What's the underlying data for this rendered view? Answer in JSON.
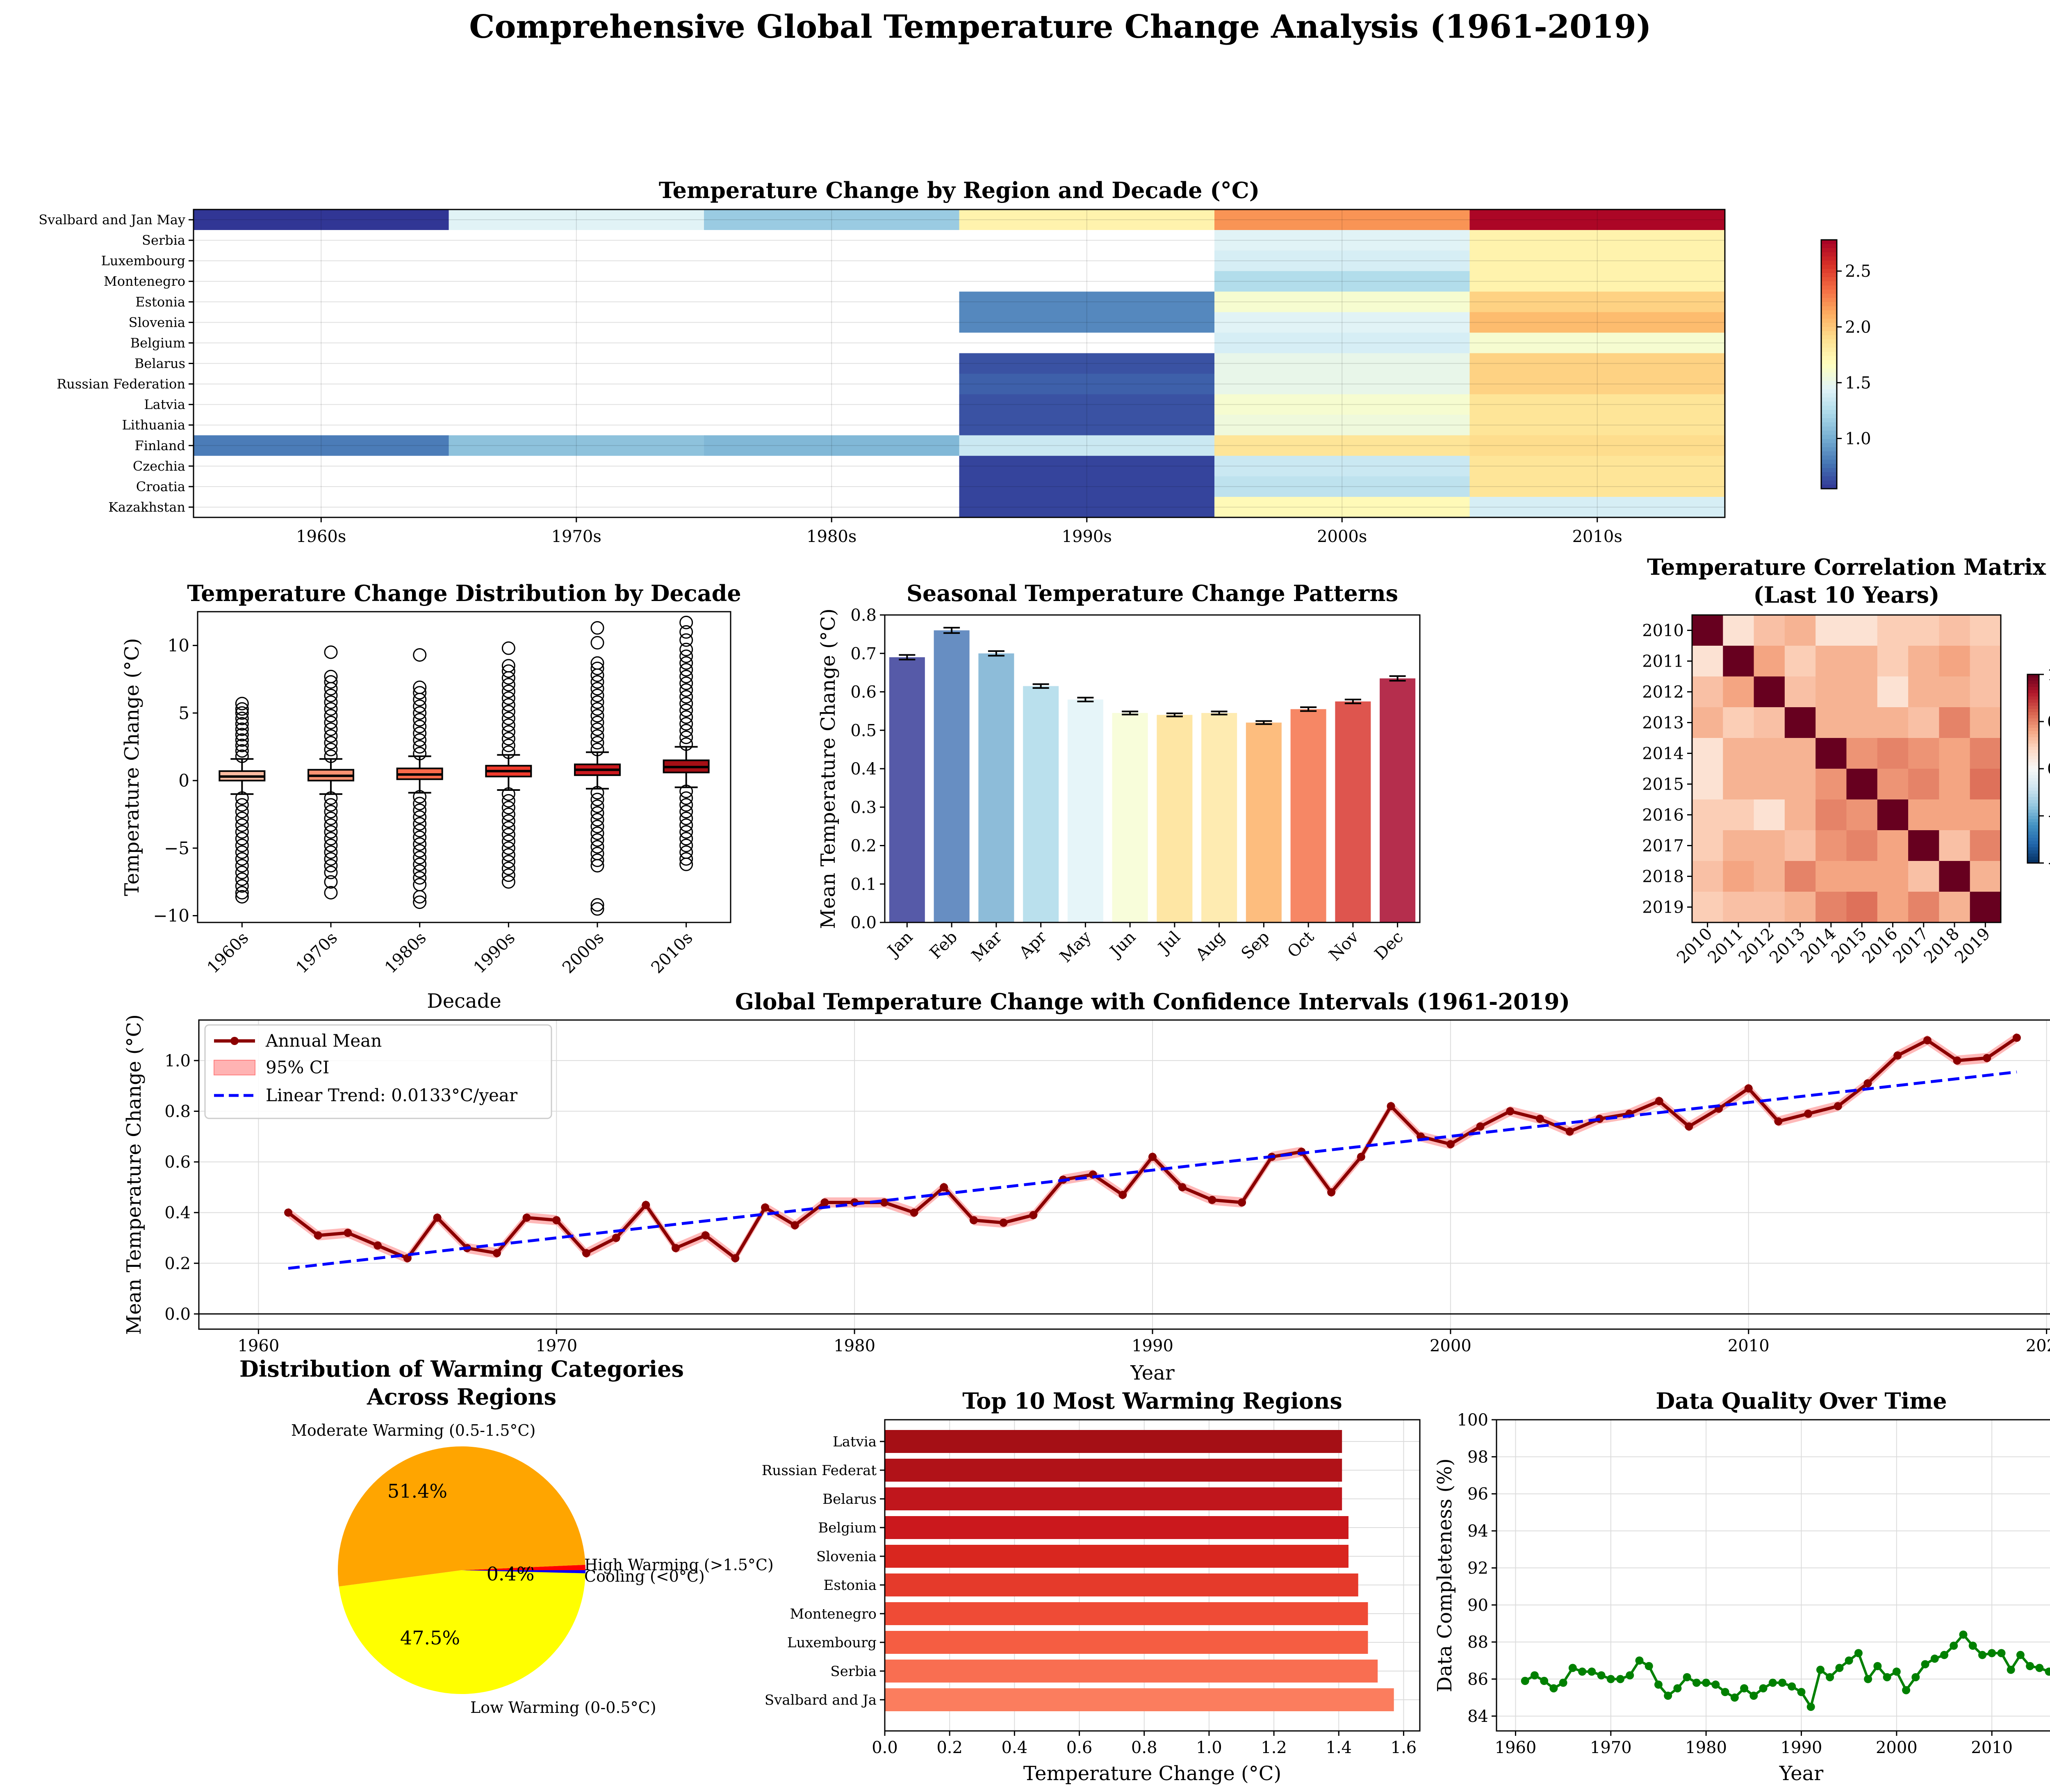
{
  "figure": {
    "title": "Comprehensive Global Temperature Change Analysis (1961-2019)"
  },
  "chart_data": [
    {
      "id": "heatmap",
      "type": "heatmap",
      "title": "Temperature Change by Region and Decade (°C)",
      "columns": [
        "1960s",
        "1970s",
        "1980s",
        "1990s",
        "2000s",
        "2010s"
      ],
      "rows": [
        "Svalbard and Jan May",
        "Serbia",
        "Luxembourg",
        "Montenegro",
        "Estonia",
        "Slovenia",
        "Belgium",
        "Belarus",
        "Russian Federation",
        "Latvia",
        "Lithuania",
        "Finland",
        "Czechia",
        "Croatia",
        "Kazakhstan"
      ],
      "values": [
        [
          0.55,
          1.45,
          1.15,
          1.75,
          2.2,
          2.75
        ],
        [
          null,
          null,
          null,
          null,
          1.45,
          1.75
        ],
        [
          null,
          null,
          null,
          null,
          1.4,
          1.75
        ],
        [
          null,
          null,
          null,
          null,
          1.25,
          1.75
        ],
        [
          null,
          null,
          null,
          0.85,
          1.6,
          1.95
        ],
        [
          null,
          null,
          null,
          0.85,
          1.45,
          2.05
        ],
        [
          null,
          null,
          null,
          null,
          1.4,
          1.6
        ],
        [
          null,
          null,
          null,
          0.65,
          1.5,
          1.95
        ],
        [
          null,
          null,
          null,
          0.7,
          1.5,
          1.95
        ],
        [
          null,
          null,
          null,
          0.65,
          1.6,
          1.85
        ],
        [
          null,
          null,
          null,
          0.65,
          1.55,
          1.85
        ],
        [
          0.8,
          1.1,
          1.05,
          1.35,
          1.85,
          1.9
        ],
        [
          null,
          null,
          null,
          0.6,
          1.35,
          1.85
        ],
        [
          null,
          null,
          null,
          0.6,
          1.3,
          1.85
        ],
        [
          null,
          null,
          null,
          0.6,
          1.7,
          1.4
        ]
      ],
      "colorbar": {
        "min": 0.55,
        "max": 2.78,
        "ticks": [
          1.0,
          1.5,
          2.0,
          2.5
        ],
        "colormap": "RdYlBu_r"
      }
    },
    {
      "id": "boxplot",
      "type": "box",
      "title": "Temperature Change Distribution by Decade",
      "xlabel": "Decade",
      "ylabel": "Temperature Change (°C)",
      "categories": [
        "1960s",
        "1970s",
        "1980s",
        "1990s",
        "2000s",
        "2010s"
      ],
      "ylim": [
        -10.5,
        12.5
      ],
      "yticks": [
        -10,
        -5,
        0,
        5,
        10
      ],
      "boxes": [
        {
          "q1": 0.0,
          "median": 0.3,
          "q3": 0.7,
          "whisker_low": -1.0,
          "whisker_high": 1.6,
          "flier_high": [
            1.8,
            2.2,
            2.6,
            3.0,
            3.4,
            3.8,
            4.2,
            4.6,
            5.0,
            5.3,
            5.7
          ],
          "flier_low": [
            -1.3,
            -1.8,
            -2.3,
            -2.8,
            -3.3,
            -3.8,
            -4.3,
            -4.8,
            -5.3,
            -5.8,
            -6.3,
            -6.8,
            -7.3,
            -7.8,
            -8.3,
            -8.6
          ]
        },
        {
          "q1": 0.0,
          "median": 0.35,
          "q3": 0.8,
          "whisker_low": -1.0,
          "whisker_high": 1.6,
          "flier_high": [
            1.8,
            2.3,
            2.8,
            3.3,
            3.8,
            4.3,
            4.8,
            5.3,
            5.8,
            6.3,
            6.8,
            7.3,
            7.7,
            9.5
          ],
          "flier_low": [
            -1.3,
            -1.8,
            -2.3,
            -2.8,
            -3.3,
            -3.8,
            -4.3,
            -4.8,
            -5.3,
            -5.8,
            -6.3,
            -6.8,
            -7.5,
            -8.3
          ]
        },
        {
          "q1": 0.1,
          "median": 0.45,
          "q3": 0.9,
          "whisker_low": -0.9,
          "whisker_high": 1.8,
          "flier_high": [
            2.0,
            2.5,
            3.0,
            3.5,
            4.0,
            4.5,
            5.0,
            5.5,
            6.0,
            6.5,
            6.9,
            9.3
          ],
          "flier_low": [
            -1.2,
            -1.7,
            -2.2,
            -2.7,
            -3.2,
            -3.7,
            -4.2,
            -4.7,
            -5.2,
            -5.7,
            -6.2,
            -6.7,
            -7.2,
            -7.7,
            -8.6,
            -9.0
          ]
        },
        {
          "q1": 0.3,
          "median": 0.7,
          "q3": 1.1,
          "whisker_low": -0.7,
          "whisker_high": 1.9,
          "flier_high": [
            2.1,
            2.6,
            3.1,
            3.6,
            4.1,
            4.6,
            5.1,
            5.6,
            6.1,
            6.6,
            7.1,
            7.6,
            8.1,
            8.5,
            9.8
          ],
          "flier_low": [
            -1.0,
            -1.5,
            -2.0,
            -2.5,
            -3.0,
            -3.5,
            -4.0,
            -4.5,
            -5.0,
            -5.5,
            -6.0,
            -6.5,
            -7.0,
            -7.5
          ]
        },
        {
          "q1": 0.4,
          "median": 0.8,
          "q3": 1.2,
          "whisker_low": -0.6,
          "whisker_high": 2.1,
          "flier_high": [
            2.3,
            2.8,
            3.3,
            3.8,
            4.3,
            4.8,
            5.3,
            5.8,
            6.3,
            6.8,
            7.3,
            7.8,
            8.3,
            8.7,
            10.2,
            11.3
          ],
          "flier_low": [
            -0.9,
            -1.4,
            -1.9,
            -2.4,
            -2.9,
            -3.4,
            -3.9,
            -4.4,
            -4.9,
            -5.4,
            -5.9,
            -6.3,
            -9.2,
            -9.5
          ]
        },
        {
          "q1": 0.6,
          "median": 1.0,
          "q3": 1.5,
          "whisker_low": -0.5,
          "whisker_high": 2.5,
          "flier_high": [
            2.7,
            3.2,
            3.7,
            4.2,
            4.7,
            5.2,
            5.7,
            6.2,
            6.7,
            7.2,
            7.7,
            8.2,
            8.7,
            9.2,
            9.7,
            10.4,
            11.0,
            11.7
          ],
          "flier_low": [
            -0.8,
            -1.3,
            -1.8,
            -2.3,
            -2.8,
            -3.3,
            -3.8,
            -4.3,
            -4.8,
            -5.3,
            -5.8,
            -6.2
          ]
        }
      ]
    },
    {
      "id": "seasonal",
      "type": "bar",
      "title": "Seasonal Temperature Change Patterns",
      "ylabel": "Mean Temperature Change (°C)",
      "categories": [
        "Jan",
        "Feb",
        "Mar",
        "Apr",
        "May",
        "Jun",
        "Jul",
        "Aug",
        "Sep",
        "Oct",
        "Nov",
        "Dec"
      ],
      "values": [
        0.69,
        0.76,
        0.7,
        0.615,
        0.58,
        0.545,
        0.54,
        0.545,
        0.52,
        0.555,
        0.575,
        0.635
      ],
      "errors": [
        0.006,
        0.007,
        0.006,
        0.005,
        0.005,
        0.004,
        0.004,
        0.004,
        0.004,
        0.005,
        0.005,
        0.006
      ],
      "colors": [
        "#313695",
        "#4575b4",
        "#74add1",
        "#abd9e9",
        "#e0f3f8",
        "#f7fcd2",
        "#fee090",
        "#fee7a0",
        "#fdae61",
        "#f46d43",
        "#d73027",
        "#a50026"
      ],
      "ylim": [
        0,
        0.8
      ],
      "yticks": [
        0.0,
        0.1,
        0.2,
        0.3,
        0.4,
        0.5,
        0.6,
        0.7,
        0.8
      ]
    },
    {
      "id": "correlation",
      "type": "heatmap",
      "title": "Temperature Correlation Matrix",
      "subtitle": "(Last 10 Years)",
      "labels": [
        "2010",
        "2011",
        "2012",
        "2013",
        "2014",
        "2015",
        "2016",
        "2017",
        "2018",
        "2019"
      ],
      "values": [
        [
          1.0,
          0.15,
          0.3,
          0.35,
          0.15,
          0.15,
          0.25,
          0.25,
          0.3,
          0.25
        ],
        [
          0.15,
          1.0,
          0.4,
          0.25,
          0.35,
          0.35,
          0.25,
          0.35,
          0.4,
          0.3
        ],
        [
          0.3,
          0.4,
          1.0,
          0.3,
          0.35,
          0.35,
          0.15,
          0.35,
          0.35,
          0.3
        ],
        [
          0.35,
          0.25,
          0.3,
          1.0,
          0.35,
          0.35,
          0.35,
          0.3,
          0.5,
          0.35
        ],
        [
          0.15,
          0.35,
          0.35,
          0.35,
          1.0,
          0.45,
          0.5,
          0.45,
          0.4,
          0.5
        ],
        [
          0.15,
          0.35,
          0.35,
          0.35,
          0.45,
          1.0,
          0.45,
          0.5,
          0.4,
          0.55
        ],
        [
          0.25,
          0.25,
          0.15,
          0.35,
          0.5,
          0.45,
          1.0,
          0.4,
          0.4,
          0.4
        ],
        [
          0.25,
          0.35,
          0.35,
          0.3,
          0.45,
          0.5,
          0.4,
          1.0,
          0.3,
          0.5
        ],
        [
          0.3,
          0.4,
          0.35,
          0.5,
          0.4,
          0.4,
          0.4,
          0.3,
          1.0,
          0.35
        ],
        [
          0.25,
          0.3,
          0.3,
          0.35,
          0.5,
          0.55,
          0.4,
          0.5,
          0.35,
          1.0
        ]
      ],
      "colorbar": {
        "min": -1.0,
        "max": 1.0,
        "ticks": [
          -1.0,
          -0.5,
          0.0,
          0.5,
          1.0
        ],
        "colormap": "RdBu_r"
      }
    },
    {
      "id": "timeseries",
      "type": "line",
      "title": "Global Temperature Change with Confidence Intervals (1961-2019)",
      "xlabel": "Year",
      "ylabel": "Mean Temperature Change (°C)",
      "x": [
        1961,
        1962,
        1963,
        1964,
        1965,
        1966,
        1967,
        1968,
        1969,
        1970,
        1971,
        1972,
        1973,
        1974,
        1975,
        1976,
        1977,
        1978,
        1979,
        1980,
        1981,
        1982,
        1983,
        1984,
        1985,
        1986,
        1987,
        1988,
        1989,
        1990,
        1991,
        1992,
        1993,
        1994,
        1995,
        1996,
        1997,
        1998,
        1999,
        2000,
        2001,
        2002,
        2003,
        2004,
        2005,
        2006,
        2007,
        2008,
        2009,
        2010,
        2011,
        2012,
        2013,
        2014,
        2015,
        2016,
        2017,
        2018,
        2019
      ],
      "values": [
        0.4,
        0.31,
        0.32,
        0.27,
        0.22,
        0.38,
        0.26,
        0.24,
        0.38,
        0.37,
        0.24,
        0.3,
        0.43,
        0.26,
        0.31,
        0.22,
        0.42,
        0.35,
        0.44,
        0.44,
        0.44,
        0.4,
        0.5,
        0.37,
        0.36,
        0.39,
        0.53,
        0.55,
        0.47,
        0.62,
        0.5,
        0.45,
        0.44,
        0.62,
        0.64,
        0.48,
        0.62,
        0.82,
        0.7,
        0.67,
        0.74,
        0.8,
        0.77,
        0.72,
        0.77,
        0.79,
        0.84,
        0.74,
        0.81,
        0.89,
        0.76,
        0.79,
        0.82,
        0.91,
        1.02,
        1.08,
        1.0,
        1.01,
        1.09
      ],
      "ci_halfwidth": 0.02,
      "series": [
        {
          "name": "Annual Mean",
          "color": "#8b0000"
        },
        {
          "name": "95% CI",
          "color": "#ff8080"
        },
        {
          "name": "Linear Trend: 0.0133°C/year",
          "color": "#0000ff",
          "slope": 0.0133,
          "start": 0.18,
          "end": 0.955
        }
      ],
      "xlim": [
        1958,
        2022
      ],
      "ylim": [
        -0.06,
        1.16
      ],
      "xticks": [
        1960,
        1970,
        1980,
        1990,
        2000,
        2010,
        2020
      ],
      "yticks": [
        0.0,
        0.2,
        0.4,
        0.6,
        0.8,
        1.0
      ]
    },
    {
      "id": "pie",
      "type": "pie",
      "title": "Distribution of Warming Categories",
      "subtitle": "Across Regions",
      "slices": [
        {
          "label": "High Warming (>1.5°C)",
          "value": 0.7,
          "pct": "0.7%",
          "color": "#ff0000"
        },
        {
          "label": "Moderate Warming (0.5-1.5°C)",
          "value": 51.4,
          "pct": "51.4%",
          "color": "#ffa500"
        },
        {
          "label": "Low Warming (0-0.5°C)",
          "value": 47.5,
          "pct": "47.5%",
          "color": "#ffff00"
        },
        {
          "label": "Cooling (<0°C)",
          "value": 0.4,
          "pct": "0.4%",
          "color": "#0000ff"
        }
      ]
    },
    {
      "id": "top10",
      "type": "bar",
      "orientation": "horizontal",
      "title": "Top 10 Most Warming Regions",
      "xlabel": "Temperature Change (°C)",
      "categories": [
        "Latvia",
        "Russian Federat",
        "Belarus",
        "Belgium",
        "Slovenia",
        "Estonia",
        "Montenegro",
        "Luxembourg",
        "Serbia",
        "Svalbard and Ja"
      ],
      "values": [
        1.41,
        1.41,
        1.41,
        1.43,
        1.43,
        1.46,
        1.49,
        1.49,
        1.52,
        1.57
      ],
      "colors": [
        "#a50f15",
        "#b11218",
        "#c0161c",
        "#cb181d",
        "#d9261f",
        "#e53a2b",
        "#ef4b36",
        "#f55d42",
        "#f96e51",
        "#fb7d5e"
      ],
      "xlim": [
        0,
        1.65
      ],
      "xticks": [
        0.0,
        0.2,
        0.4,
        0.6,
        0.8,
        1.0,
        1.2,
        1.4,
        1.6
      ]
    },
    {
      "id": "quality",
      "type": "line",
      "title": "Data Quality Over Time",
      "xlabel": "Year",
      "ylabel": "Data Completeness (%)",
      "x": [
        1961,
        1962,
        1963,
        1964,
        1965,
        1966,
        1967,
        1968,
        1969,
        1970,
        1971,
        1972,
        1973,
        1974,
        1975,
        1976,
        1977,
        1978,
        1979,
        1980,
        1981,
        1982,
        1983,
        1984,
        1985,
        1986,
        1987,
        1988,
        1989,
        1990,
        1991,
        1992,
        1993,
        1994,
        1995,
        1996,
        1997,
        1998,
        1999,
        2000,
        2001,
        2002,
        2003,
        2004,
        2005,
        2006,
        2007,
        2008,
        2009,
        2010,
        2011,
        2012,
        2013,
        2014,
        2015,
        2016,
        2017,
        2018,
        2019
      ],
      "values": [
        85.9,
        86.2,
        85.9,
        85.5,
        85.8,
        86.6,
        86.4,
        86.4,
        86.2,
        86.0,
        86.0,
        86.2,
        87.0,
        86.7,
        85.7,
        85.1,
        85.5,
        86.1,
        85.8,
        85.8,
        85.7,
        85.3,
        85.0,
        85.5,
        85.1,
        85.5,
        85.8,
        85.8,
        85.6,
        85.3,
        84.5,
        86.5,
        86.1,
        86.6,
        87.0,
        87.4,
        86.0,
        86.7,
        86.1,
        86.4,
        85.4,
        86.1,
        86.8,
        87.1,
        87.3,
        87.8,
        88.4,
        87.8,
        87.3,
        87.4,
        87.4,
        86.5,
        87.3,
        86.7,
        86.6,
        86.4,
        86.7,
        86.6,
        86.7
      ],
      "color": "#008000",
      "xlim": [
        1958,
        2022
      ],
      "ylim": [
        83.2,
        100
      ],
      "xticks": [
        1960,
        1970,
        1980,
        1990,
        2000,
        2010,
        2020
      ],
      "yticks": [
        84,
        86,
        88,
        90,
        92,
        94,
        96,
        98,
        100
      ]
    }
  ]
}
